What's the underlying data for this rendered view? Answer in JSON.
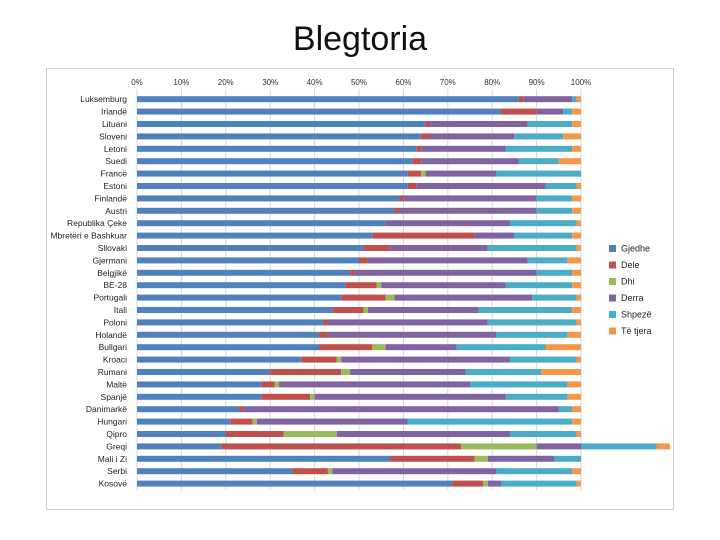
{
  "slide": {
    "title": "Blegtoria"
  },
  "chart_data": {
    "type": "bar",
    "orientation": "horizontal",
    "stacked": "percent",
    "title": "Blegtoria",
    "xlabel": "",
    "ylabel": "",
    "xlim": [
      0,
      100
    ],
    "x_ticks": [
      "0%",
      "10%",
      "20%",
      "30%",
      "40%",
      "50%",
      "60%",
      "70%",
      "80%",
      "90%",
      "100%"
    ],
    "grid": true,
    "legend_position": "right",
    "categories": [
      "Luksemburg",
      "Irlandë",
      "Lituani",
      "Sloveni",
      "Letoni",
      "Suedi",
      "Francë",
      "Estoni",
      "Finlandë",
      "Austri",
      "Republika Çeke",
      "Mbretëri e Bashkuar",
      "Sllovaki",
      "Gjermani",
      "Belgjikë",
      "BE-28",
      "Portugali",
      "Itali",
      "Poloni",
      "Holandë",
      "Bullgari",
      "Kroaci",
      "Rumani",
      "Maltë",
      "Spanjë",
      "Danimarkë",
      "Hungari",
      "Qipro",
      "Greqi",
      "Mali i Zi",
      "Serbi",
      "Kosovë"
    ],
    "series": [
      {
        "name": "Gjedhe",
        "color": "#4f81bd",
        "values": [
          86,
          82,
          65,
          64,
          63,
          62,
          61,
          61,
          59,
          58,
          56,
          53,
          51,
          50,
          48,
          47,
          46,
          44,
          42,
          41,
          41,
          37,
          30,
          28,
          28,
          23,
          21,
          20,
          19,
          57,
          35,
          71
        ]
      },
      {
        "name": "Dele",
        "color": "#c0504d",
        "values": [
          1,
          8,
          1,
          2,
          1,
          2,
          3,
          2,
          1,
          1,
          0,
          23,
          6,
          2,
          1,
          7,
          10,
          7,
          1,
          2,
          12,
          8,
          16,
          3,
          11,
          1,
          5,
          13,
          54,
          19,
          8,
          7
        ]
      },
      {
        "name": "Dhi",
        "color": "#9bbb59",
        "values": [
          0,
          0,
          0,
          0,
          0,
          0,
          1,
          0,
          0,
          0,
          0,
          0,
          0,
          0,
          0,
          1,
          2,
          1,
          0,
          0,
          3,
          1,
          2,
          1,
          1,
          0,
          1,
          12,
          17,
          3,
          1,
          1
        ]
      },
      {
        "name": "Derra",
        "color": "#8064a2",
        "values": [
          11,
          6,
          22,
          19,
          19,
          22,
          16,
          29,
          30,
          31,
          28,
          9,
          22,
          36,
          41,
          28,
          31,
          25,
          36,
          38,
          16,
          38,
          26,
          43,
          43,
          71,
          34,
          39,
          10,
          15,
          37,
          3
        ]
      },
      {
        "name": "Shpezë",
        "color": "#4bacc6",
        "values": [
          1,
          2,
          10,
          11,
          15,
          9,
          19,
          7,
          8,
          8,
          15,
          13,
          20,
          9,
          8,
          15,
          10,
          21,
          20,
          16,
          20,
          15,
          17,
          22,
          14,
          3,
          37,
          15,
          17,
          6,
          17,
          17
        ]
      },
      {
        "name": "Të tjera",
        "color": "#f79646",
        "values": [
          1,
          2,
          2,
          4,
          2,
          5,
          0,
          1,
          2,
          2,
          1,
          2,
          1,
          3,
          2,
          2,
          1,
          2,
          1,
          3,
          8,
          1,
          9,
          3,
          3,
          2,
          2,
          1,
          3,
          0,
          2,
          1
        ]
      }
    ]
  }
}
